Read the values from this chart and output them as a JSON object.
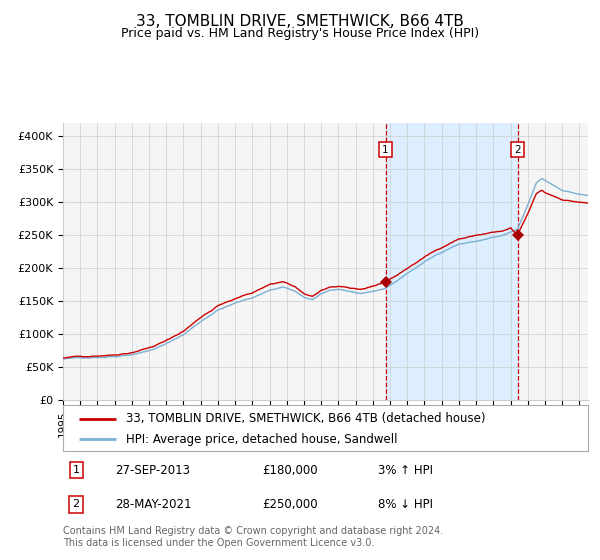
{
  "title": "33, TOMBLIN DRIVE, SMETHWICK, B66 4TB",
  "subtitle": "Price paid vs. HM Land Registry's House Price Index (HPI)",
  "ylabel_ticks": [
    "£0",
    "£50K",
    "£100K",
    "£150K",
    "£200K",
    "£250K",
    "£300K",
    "£350K",
    "£400K"
  ],
  "ytick_values": [
    0,
    50000,
    100000,
    150000,
    200000,
    250000,
    300000,
    350000,
    400000
  ],
  "ylim": [
    0,
    420000
  ],
  "xlim_start": 1995.0,
  "xlim_end": 2025.5,
  "sale1_date": 2013.74,
  "sale1_label": "1",
  "sale1_price": 180000,
  "sale1_text": "27-SEP-2013",
  "sale1_pct": "3%",
  "sale1_direction": "↑",
  "sale2_date": 2021.41,
  "sale2_label": "2",
  "sale2_price": 250000,
  "sale2_text": "28-MAY-2021",
  "sale2_pct": "8%",
  "sale2_direction": "↓",
  "shade_color": "#ddeeff",
  "line1_color": "#cc0000",
  "line2_color": "#7ab0d4",
  "marker_color": "#aa0000",
  "grid_color": "#cccccc",
  "background_color": "#f5f5f5",
  "legend1_label": "33, TOMBLIN DRIVE, SMETHWICK, B66 4TB (detached house)",
  "legend2_label": "HPI: Average price, detached house, Sandwell",
  "footer": "Contains HM Land Registry data © Crown copyright and database right 2024.\nThis data is licensed under the Open Government Licence v3.0.",
  "title_fontsize": 11,
  "subtitle_fontsize": 9,
  "tick_fontsize": 8,
  "legend_fontsize": 8.5,
  "footer_fontsize": 7
}
